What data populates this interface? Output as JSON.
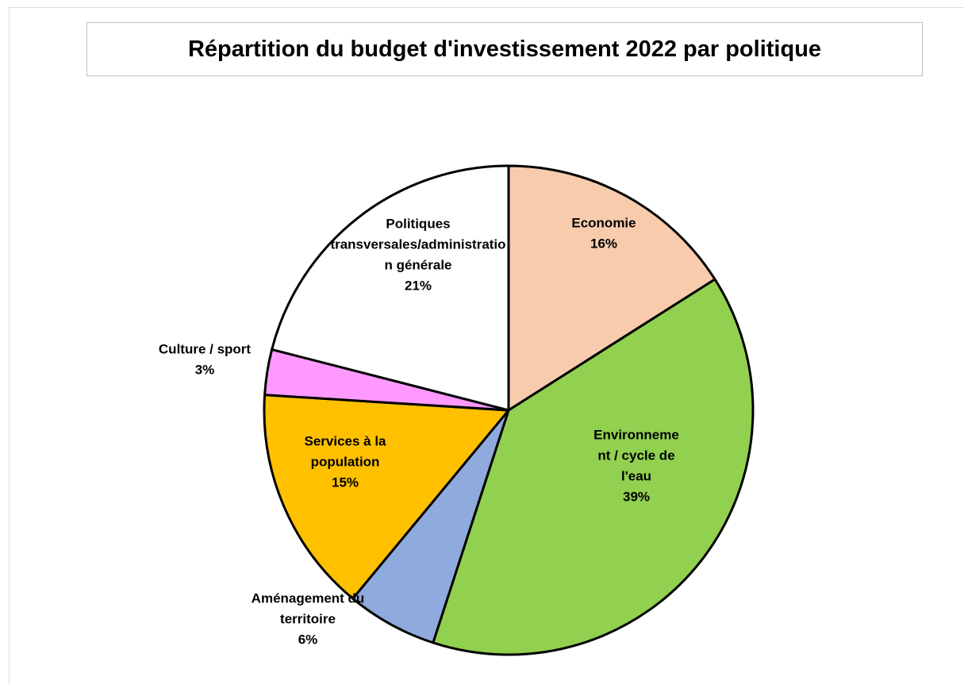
{
  "chart_data": {
    "type": "pie",
    "title": "Répartition du budget d'investissement 2022 par politique",
    "slices": [
      {
        "label_lines": [
          "Economie"
        ],
        "value": 16,
        "value_label": "16%",
        "color": "#F8CBAD"
      },
      {
        "label_lines": [
          "Environneme",
          "nt / cycle de",
          "l'eau"
        ],
        "value": 39,
        "value_label": "39%",
        "color": "#92D050"
      },
      {
        "label_lines": [
          "Aménagement du",
          "territoire"
        ],
        "value": 6,
        "value_label": "6%",
        "color": "#8FAADC"
      },
      {
        "label_lines": [
          "Services à la",
          "population"
        ],
        "value": 15,
        "value_label": "15%",
        "color": "#FFC000"
      },
      {
        "label_lines": [
          "Culture / sport"
        ],
        "value": 3,
        "value_label": "3%",
        "color": "#FF99FF"
      },
      {
        "label_lines": [
          "Politiques",
          "transversales/administratio",
          "n générale"
        ],
        "value": 21,
        "value_label": "21%",
        "color": "#FFFFFF"
      }
    ],
    "start_angle_deg": 0,
    "direction": "clockwise",
    "slice_border_color": "#000000",
    "legend": "none"
  }
}
